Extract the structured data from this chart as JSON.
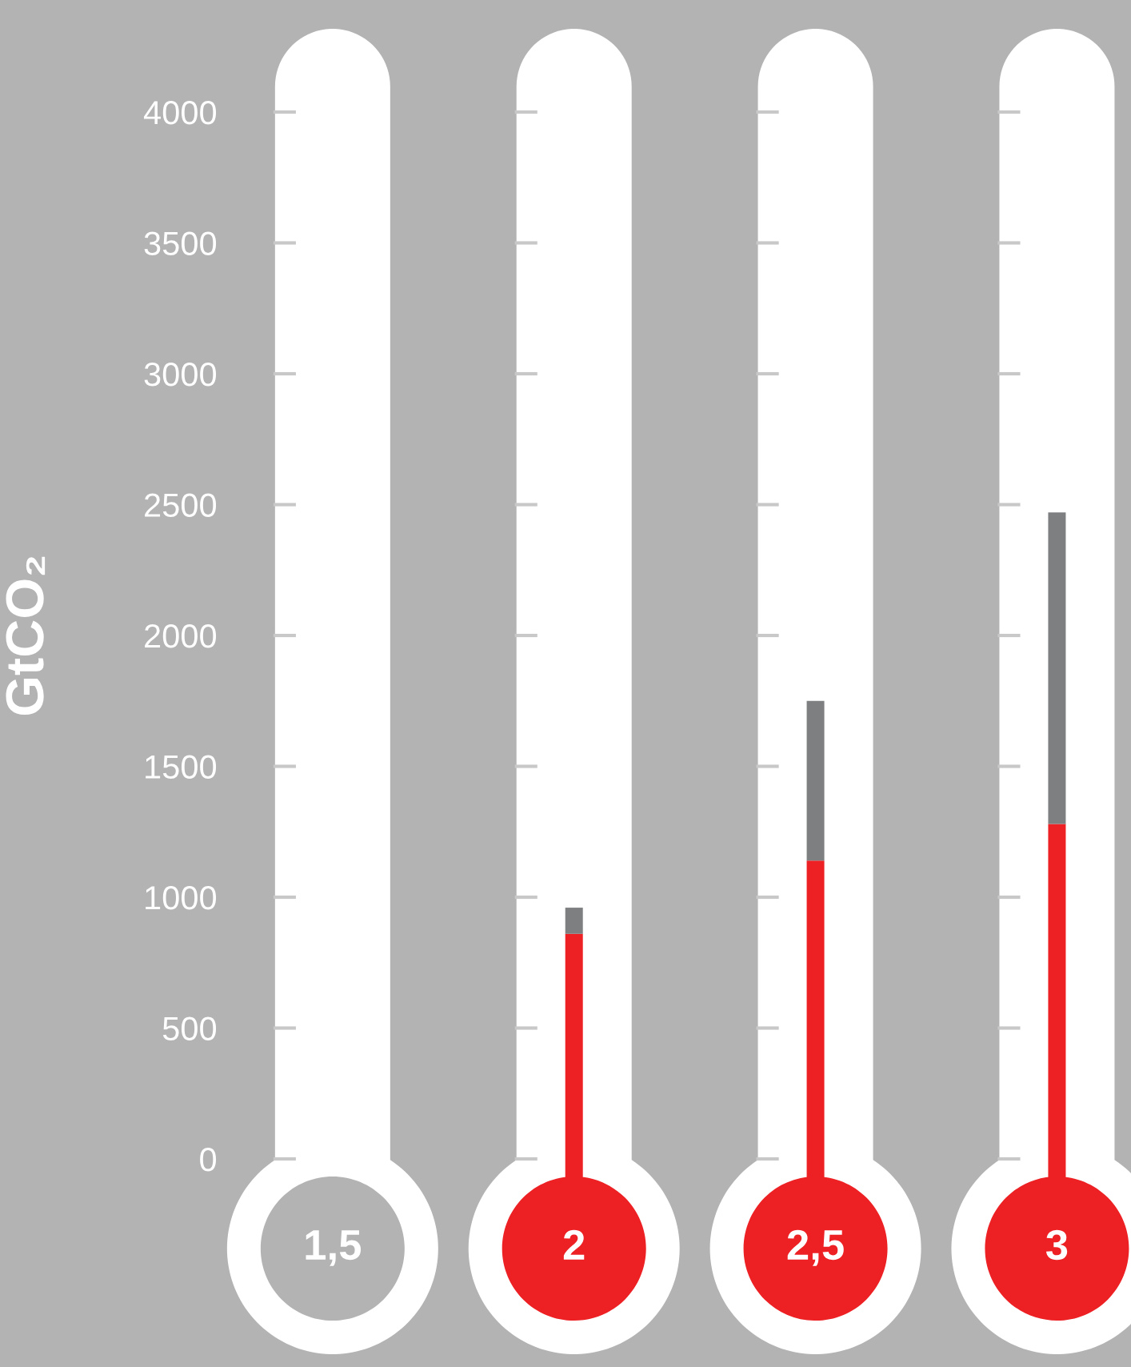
{
  "chart_data": {
    "type": "bar",
    "ylabel": "GtCO₂",
    "categories": [
      "1,5",
      "2",
      "2,5",
      "3"
    ],
    "stacked": true,
    "series": [
      {
        "color": "#ed2024",
        "values": [
          0,
          860,
          1140,
          1280
        ]
      },
      {
        "color": "#7d7f80",
        "values": [
          0,
          100,
          610,
          1190
        ]
      }
    ],
    "ylim": [
      0,
      4000
    ],
    "yticks": [
      0,
      500,
      1000,
      1500,
      2000,
      2500,
      3000,
      3500,
      4000
    ],
    "grid": false,
    "legend": false
  }
}
